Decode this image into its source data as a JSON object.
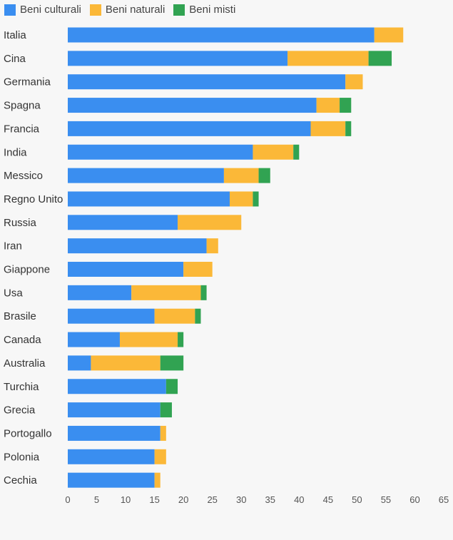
{
  "colors": {
    "culturali": "#3a8ef0",
    "naturali": "#fbb838",
    "misti": "#31a352"
  },
  "chart_data": {
    "type": "bar",
    "orientation": "horizontal",
    "stacked": true,
    "categories": [
      "Italia",
      "Cina",
      "Germania",
      "Spagna",
      "Francia",
      "India",
      "Messico",
      "Regno Unito",
      "Russia",
      "Iran",
      "Giappone",
      "Usa",
      "Brasile",
      "Canada",
      "Australia",
      "Turchia",
      "Grecia",
      "Portogallo",
      "Polonia",
      "Cechia"
    ],
    "series": [
      {
        "name": "Beni culturali",
        "color_key": "culturali",
        "values": [
          53,
          38,
          48,
          43,
          42,
          32,
          27,
          28,
          19,
          24,
          20,
          11,
          15,
          9,
          4,
          17,
          16,
          16,
          15,
          15
        ]
      },
      {
        "name": "Beni naturali",
        "color_key": "naturali",
        "values": [
          5,
          14,
          3,
          4,
          6,
          7,
          6,
          4,
          11,
          2,
          5,
          12,
          7,
          10,
          12,
          0,
          0,
          1,
          2,
          1
        ]
      },
      {
        "name": "Beni misti",
        "color_key": "misti",
        "values": [
          0,
          4,
          0,
          2,
          1,
          1,
          2,
          1,
          0,
          0,
          0,
          1,
          1,
          1,
          4,
          2,
          2,
          0,
          0,
          0
        ]
      }
    ],
    "xlim": [
      0,
      65
    ],
    "xticks": [
      0,
      5,
      10,
      15,
      20,
      25,
      30,
      35,
      40,
      45,
      50,
      55,
      60,
      65
    ],
    "legend_position": "top-left",
    "grid": false
  }
}
